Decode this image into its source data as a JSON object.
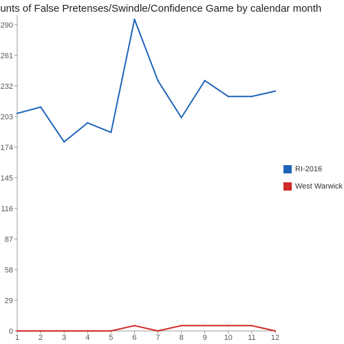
{
  "chart_data": {
    "type": "line",
    "title": "ounts of False Pretenses/Swindle/Confidence Game by calendar month",
    "xlabel": "",
    "ylabel": "",
    "x": [
      1,
      2,
      3,
      4,
      5,
      6,
      7,
      8,
      9,
      10,
      11,
      12
    ],
    "ylim": [
      0,
      299
    ],
    "yticks": [
      0,
      29,
      58,
      87,
      116,
      145,
      174,
      203,
      232,
      261,
      290
    ],
    "grid": false,
    "legend_position": "right",
    "series": [
      {
        "name": "RI-2016",
        "color": "#1f64b9",
        "values": [
          206,
          212,
          179,
          197,
          188,
          295,
          237,
          202,
          237,
          222,
          222,
          227
        ]
      },
      {
        "name": "West Warwick",
        "color": "#d02a27",
        "values": [
          0,
          0,
          0,
          0,
          0,
          5,
          0,
          5,
          5,
          5,
          5,
          0
        ]
      }
    ]
  }
}
